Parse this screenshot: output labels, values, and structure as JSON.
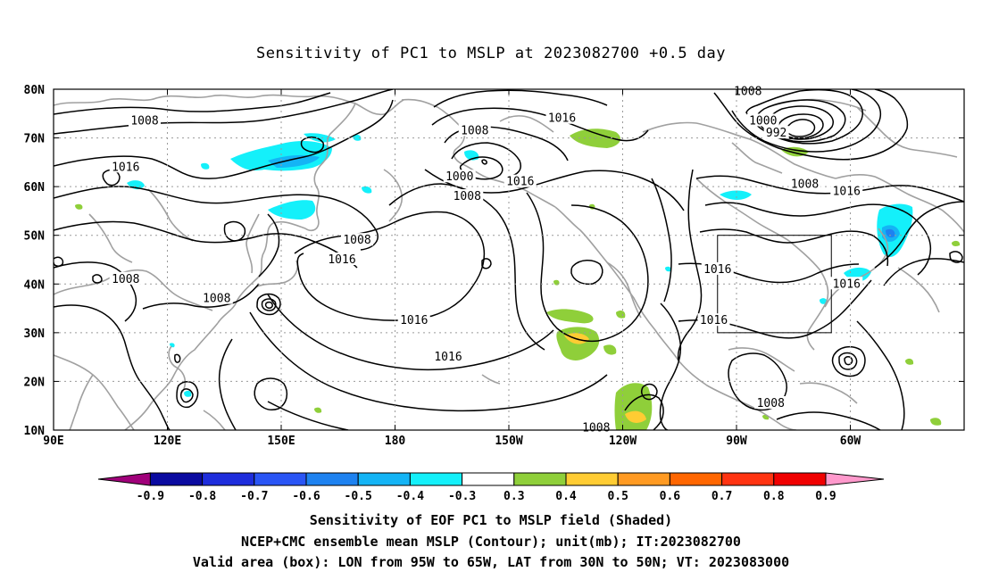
{
  "title": "Sensitivity of PC1 to MSLP at 2023082700 +0.5 day",
  "lat_labels": [
    "80N",
    "70N",
    "60N",
    "50N",
    "40N",
    "30N",
    "20N",
    "10N"
  ],
  "lon_labels": [
    "90E",
    "120E",
    "150E",
    "180",
    "150W",
    "120W",
    "90W",
    "60W"
  ],
  "contour_labels": [
    {
      "text": "1008",
      "lon": 114,
      "lat": 73.5
    },
    {
      "text": "1016",
      "lon": 109,
      "lat": 64
    },
    {
      "text": "1008",
      "lon": 109,
      "lat": 41
    },
    {
      "text": "1008",
      "lon": 133,
      "lat": 37
    },
    {
      "text": "1008",
      "lon": 170,
      "lat": 49
    },
    {
      "text": "1016",
      "lon": 166,
      "lat": 45
    },
    {
      "text": "1008",
      "lon": -159,
      "lat": 71.5
    },
    {
      "text": "1016",
      "lon": -136,
      "lat": 74
    },
    {
      "text": "1000",
      "lon": -163,
      "lat": 62
    },
    {
      "text": "1008",
      "lon": -161,
      "lat": 58
    },
    {
      "text": "1016",
      "lon": -147,
      "lat": 61
    },
    {
      "text": "1016",
      "lon": -175,
      "lat": 32.5
    },
    {
      "text": "1016",
      "lon": -166,
      "lat": 25
    },
    {
      "text": "1008",
      "lon": -127,
      "lat": 10.5
    },
    {
      "text": "1008",
      "lon": -87,
      "lat": 79.5
    },
    {
      "text": "1000",
      "lon": -83,
      "lat": 73.5
    },
    {
      "text": "992",
      "lon": -79.5,
      "lat": 71
    },
    {
      "text": "1008",
      "lon": -72,
      "lat": 60.5
    },
    {
      "text": "1016",
      "lon": -61,
      "lat": 59
    },
    {
      "text": "1016",
      "lon": -95,
      "lat": 43
    },
    {
      "text": "1016",
      "lon": -96,
      "lat": 32.5
    },
    {
      "text": "1016",
      "lon": -61,
      "lat": 40
    },
    {
      "text": "1008",
      "lon": -81,
      "lat": 15.5
    }
  ],
  "colorbar": {
    "labels": [
      "-0.9",
      "-0.8",
      "-0.7",
      "-0.6",
      "-0.5",
      "-0.4",
      "-0.3",
      "0.3",
      "0.4",
      "0.5",
      "0.6",
      "0.7",
      "0.8",
      "0.9"
    ],
    "colors": [
      "#a0007a",
      "#0a0aa0",
      "#1e2ddc",
      "#2a55f5",
      "#1e82f0",
      "#14b4f5",
      "#14f0fa",
      "#ffffff",
      "#8fcf3a",
      "#ffcc33",
      "#ff9a22",
      "#ff6600",
      "#ff3311",
      "#f00000",
      "#ff99cc"
    ]
  },
  "valid_box": {
    "lon_min": -95,
    "lon_max": -65,
    "lat_min": 30,
    "lat_max": 50
  },
  "captions": [
    "Sensitivity of EOF PC1 to MSLP field (Shaded)",
    "NCEP+CMC ensemble mean MSLP (Contour); unit(mb); IT:2023082700",
    "Valid area (box): LON from 95W to 65W, LAT from 30N to 50N; VT: 2023083000"
  ],
  "colors": {
    "contour": "#000000",
    "coast": "#a0a0a0",
    "grid": "#9a9a9a",
    "frame": "#000000"
  }
}
